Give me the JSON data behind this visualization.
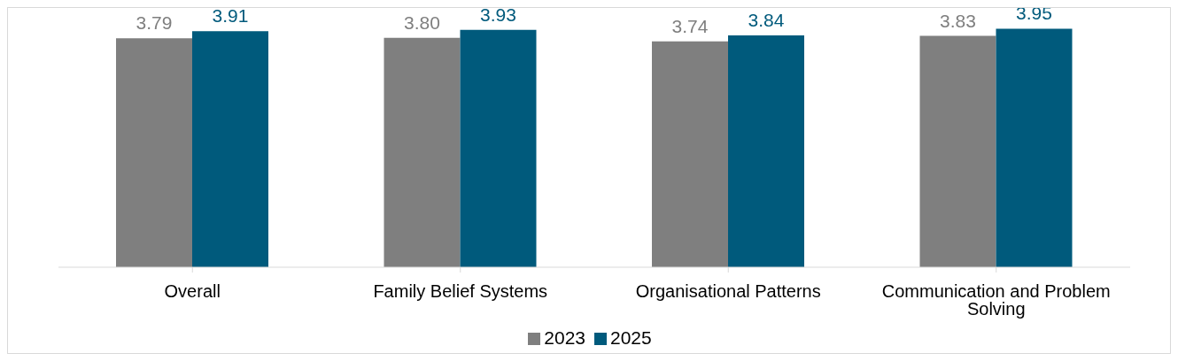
{
  "chart_data": {
    "type": "bar",
    "categories": [
      "Overall",
      "Family Belief Systems",
      "Organisational Patterns",
      "Communication and Problem Solving"
    ],
    "series": [
      {
        "name": "2023",
        "color": "#7f7f7f",
        "values": [
          3.79,
          3.8,
          3.74,
          3.83
        ],
        "value_labels": [
          "3.79",
          "3.80",
          "3.74",
          "3.83"
        ]
      },
      {
        "name": "2025",
        "color": "#005a7c",
        "values": [
          3.91,
          3.93,
          3.84,
          3.95
        ],
        "value_labels": [
          "3.91",
          "3.93",
          "3.84",
          "3.95"
        ]
      }
    ],
    "legend": "bottom"
  }
}
